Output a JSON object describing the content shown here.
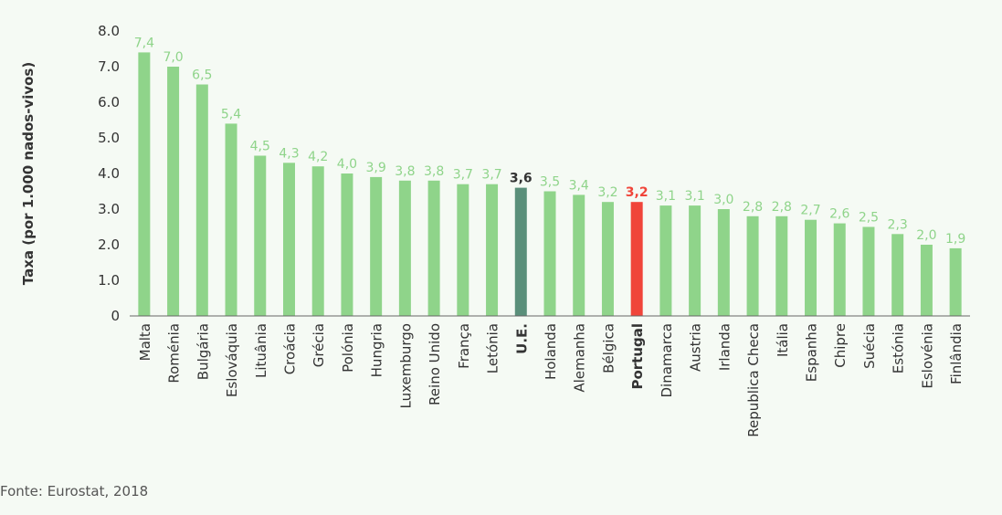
{
  "chart_data": {
    "type": "bar",
    "ylabel": "Taxa (por 1.000 nados-vivos)",
    "ylim": [
      0,
      8
    ],
    "yticks": [
      "0",
      "1.0",
      "2.0",
      "3.0",
      "4.0",
      "5.0",
      "6.0",
      "7.0",
      "8.0"
    ],
    "grid": false,
    "categories": [
      "Malta",
      "Roménia",
      "Bulgária",
      "Eslováquia",
      "Lituânia",
      "Croácia",
      "Grécia",
      "Polónia",
      "Hungria",
      "Luxemburgo",
      "Reino Unido",
      "França",
      "Letónia",
      "U.E.",
      "Holanda",
      "Alemanha",
      "Bélgica",
      "Portugal",
      "Dinamarca",
      "Austria",
      "Irlanda",
      "Republica Checa",
      "Itália",
      "Espanha",
      "Chipre",
      "Suécia",
      "Estónia",
      "Eslovénia",
      "Finlândia"
    ],
    "values": [
      7.4,
      7.0,
      6.5,
      5.4,
      4.5,
      4.3,
      4.2,
      4.0,
      3.9,
      3.8,
      3.8,
      3.7,
      3.7,
      3.6,
      3.5,
      3.4,
      3.2,
      3.2,
      3.1,
      3.1,
      3.0,
      2.8,
      2.8,
      2.7,
      2.6,
      2.5,
      2.3,
      2.0,
      1.9
    ],
    "value_labels": [
      "7,4",
      "7,0",
      "6,5",
      "5,4",
      "4,5",
      "4,3",
      "4,2",
      "4,0",
      "3,9",
      "3,8",
      "3,8",
      "3,7",
      "3,7",
      "3,6",
      "3,5",
      "3,4",
      "3,2",
      "3,2",
      "3,1",
      "3,1",
      "3,0",
      "2,8",
      "2,8",
      "2,7",
      "2,6",
      "2,5",
      "2,3",
      "2,0",
      "1,9"
    ],
    "colors": {
      "default": "#8fd48a",
      "default_label": "#8fd48a",
      "eu": "#5a8f7a",
      "eu_label": "#333333",
      "portugal": "#f0453a",
      "portugal_label": "#f0453a",
      "axis": "#555555",
      "text": "#333333"
    },
    "highlight": {
      "eu_index": 13,
      "portugal_index": 17
    }
  },
  "source_text": "Fonte: Eurostat, 2018"
}
